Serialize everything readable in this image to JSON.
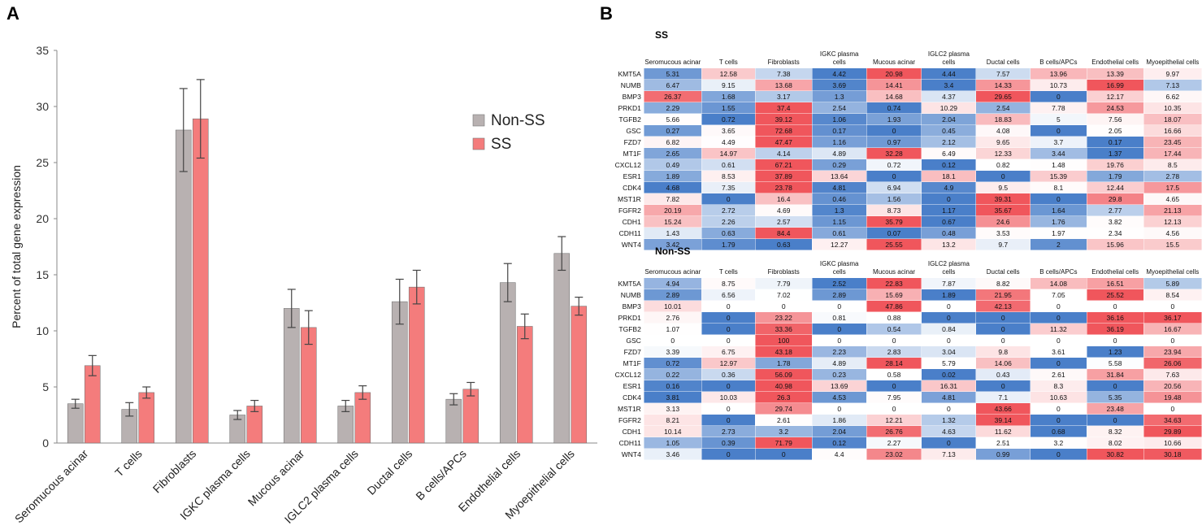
{
  "panel_labels": {
    "a": "A",
    "b": "B"
  },
  "colors": {
    "non_ss": "#b8b1b1",
    "ss": "#f47c7c",
    "axis": "#888888",
    "low": "#4a7fc9",
    "mid": "#ffffff",
    "high": "#f0565c"
  },
  "chart_data": [
    {
      "type": "bar",
      "ylabel": "Percent of total gene  expression",
      "ylim": [
        0,
        35
      ],
      "yticks": [
        0,
        5,
        10,
        15,
        20,
        25,
        30,
        35
      ],
      "categories": [
        "Seromucous acinar",
        "T cells",
        "Fibroblasts",
        "IGKC plasma cells",
        "Mucous acinar",
        "IGLC2 plasma cells",
        "Ductal cells",
        "B cells/APCs",
        "Endothelial cells",
        "Myoepithelial cells"
      ],
      "legend": {
        "position": "top-right",
        "entries": [
          "Non-SS",
          "SS"
        ]
      },
      "series": [
        {
          "name": "Non-SS",
          "values": [
            3.5,
            3.0,
            27.9,
            2.5,
            12.0,
            3.3,
            12.6,
            3.9,
            14.3,
            16.9
          ],
          "errors": [
            0.4,
            0.6,
            3.7,
            0.4,
            1.7,
            0.5,
            2.0,
            0.5,
            1.7,
            1.5
          ]
        },
        {
          "name": "SS",
          "values": [
            6.9,
            4.5,
            28.9,
            3.3,
            10.3,
            4.5,
            13.9,
            4.8,
            10.4,
            12.2
          ],
          "errors": [
            0.9,
            0.5,
            3.5,
            0.5,
            1.5,
            0.6,
            1.5,
            0.6,
            1.1,
            0.8
          ]
        }
      ]
    },
    {
      "type": "heatmap",
      "title": "SS",
      "columns": [
        "Seromucous acinar",
        "T cells",
        "Fibroblasts",
        "IGKC plasma cells",
        "Mucous acinar",
        "IGLC2 plasma cells",
        "Ductal cells",
        "B cells/APCs",
        "Endothelial cells",
        "Myoepithelial cells"
      ],
      "rows": [
        {
          "gene": "KMT5A",
          "values": [
            "5.31",
            "12.58",
            "7.38",
            "4.42",
            "20.98",
            "4.44",
            "7.57",
            "13.96",
            "13.39",
            "9.97"
          ]
        },
        {
          "gene": "NUMB",
          "values": [
            "6.47",
            "9.15",
            "13.68",
            "3.69",
            "14.41",
            "3.4",
            "14.33",
            "10.73",
            "16.99",
            "7.13"
          ]
        },
        {
          "gene": "BMP3",
          "values": [
            "26.37",
            "1.68",
            "3.17",
            "1.3",
            "14.68",
            "4.37",
            "29.65",
            "0",
            "12.17",
            "6.62"
          ]
        },
        {
          "gene": "PRKD1",
          "values": [
            "2.29",
            "1.55",
            "37.4",
            "2.54",
            "0.74",
            "10.29",
            "2.54",
            "7.78",
            "24.53",
            "10.35"
          ]
        },
        {
          "gene": "TGFB2",
          "values": [
            "5.66",
            "0.72",
            "39.12",
            "1.06",
            "1.93",
            "2.04",
            "18.83",
            "5",
            "7.56",
            "18.07"
          ]
        },
        {
          "gene": "GSC",
          "values": [
            "0.27",
            "3.65",
            "72.68",
            "0.17",
            "0",
            "0.45",
            "4.08",
            "0",
            "2.05",
            "16.66"
          ]
        },
        {
          "gene": "FZD7",
          "values": [
            "6.82",
            "4.49",
            "47.47",
            "1.16",
            "0.97",
            "2.12",
            "9.65",
            "3.7",
            "0.17",
            "23.45"
          ]
        },
        {
          "gene": "MT1F",
          "values": [
            "2.65",
            "14.97",
            "4.14",
            "4.89",
            "32.28",
            "6.49",
            "12.33",
            "3.44",
            "1.37",
            "17.44"
          ]
        },
        {
          "gene": "CXCL12",
          "values": [
            "0.49",
            "0.61",
            "67.21",
            "0.29",
            "0.72",
            "0.12",
            "0.82",
            "1.48",
            "19.76",
            "8.5"
          ]
        },
        {
          "gene": "ESR1",
          "values": [
            "1.89",
            "8.53",
            "37.89",
            "13.64",
            "0",
            "18.1",
            "0",
            "15.39",
            "1.79",
            "2.78"
          ]
        },
        {
          "gene": "CDK4",
          "values": [
            "4.68",
            "7.35",
            "23.78",
            "4.81",
            "6.94",
            "4.9",
            "9.5",
            "8.1",
            "12.44",
            "17.5"
          ]
        },
        {
          "gene": "MST1R",
          "values": [
            "7.82",
            "0",
            "16.4",
            "0.46",
            "1.56",
            "0",
            "39.31",
            "0",
            "29.8",
            "4.65"
          ]
        },
        {
          "gene": "FGFR2",
          "values": [
            "20.19",
            "2.72",
            "4.69",
            "1.3",
            "8.73",
            "1.17",
            "35.67",
            "1.64",
            "2.77",
            "21.13"
          ]
        },
        {
          "gene": "CDH1",
          "values": [
            "15.24",
            "2.26",
            "2.57",
            "1.15",
            "35.79",
            "0.67",
            "24.6",
            "1.76",
            "3.82",
            "12.13"
          ]
        },
        {
          "gene": "CDH11",
          "values": [
            "1.43",
            "0.63",
            "84.4",
            "0.61",
            "0.07",
            "0.48",
            "3.53",
            "1.97",
            "2.34",
            "4.56"
          ]
        },
        {
          "gene": "WNT4",
          "values": [
            "3.42",
            "1.79",
            "0.63",
            "12.27",
            "25.55",
            "13.2",
            "9.7",
            "2",
            "15.96",
            "15.5"
          ]
        }
      ]
    },
    {
      "type": "heatmap",
      "title": "Non-SS",
      "columns": [
        "Seromucous acinar",
        "T cells",
        "Fibroblasts",
        "IGKC plasma cells",
        "Mucous acinar",
        "IGLC2 plasma cells",
        "Ductal cells",
        "B cells/APCs",
        "Endothelial cells",
        "Myoepithelial cells"
      ],
      "rows": [
        {
          "gene": "KMT5A",
          "values": [
            "4.94",
            "8.75",
            "7.79",
            "2.52",
            "22.83",
            "7.87",
            "8.82",
            "14.08",
            "16.51",
            "5.89"
          ]
        },
        {
          "gene": "NUMB",
          "values": [
            "2.89",
            "6.56",
            "7.02",
            "2.89",
            "15.69",
            "1.89",
            "21.95",
            "7.05",
            "25.52",
            "8.54"
          ]
        },
        {
          "gene": "BMP3",
          "values": [
            "10.01",
            "0",
            "0",
            "0",
            "47.86",
            "0",
            "42.13",
            "0",
            "0",
            "0"
          ]
        },
        {
          "gene": "PRKD1",
          "values": [
            "2.76",
            "0",
            "23.22",
            "0.81",
            "0.88",
            "0",
            "0",
            "0",
            "36.16",
            "36.17"
          ]
        },
        {
          "gene": "TGFB2",
          "values": [
            "1.07",
            "0",
            "33.36",
            "0",
            "0.54",
            "0.84",
            "0",
            "11.32",
            "36.19",
            "16.67"
          ]
        },
        {
          "gene": "GSC",
          "values": [
            "0",
            "0",
            "100",
            "0",
            "0",
            "0",
            "0",
            "0",
            "0",
            "0"
          ]
        },
        {
          "gene": "FZD7",
          "values": [
            "3.39",
            "6.75",
            "43.18",
            "2.23",
            "2.83",
            "3.04",
            "9.8",
            "3.61",
            "1.23",
            "23.94"
          ]
        },
        {
          "gene": "MT1F",
          "values": [
            "0.72",
            "12.97",
            "1.78",
            "4.89",
            "28.14",
            "5.79",
            "14.06",
            "0",
            "5.58",
            "26.06"
          ]
        },
        {
          "gene": "CXCL12",
          "values": [
            "0.22",
            "0.36",
            "56.09",
            "0.23",
            "0.58",
            "0.02",
            "0.43",
            "2.61",
            "31.84",
            "7.63"
          ]
        },
        {
          "gene": "ESR1",
          "values": [
            "0.16",
            "0",
            "40.98",
            "13.69",
            "0",
            "16.31",
            "0",
            "8.3",
            "0",
            "20.56"
          ]
        },
        {
          "gene": "CDK4",
          "values": [
            "3.81",
            "10.03",
            "26.3",
            "4.53",
            "7.95",
            "4.81",
            "7.1",
            "10.63",
            "5.35",
            "19.48"
          ]
        },
        {
          "gene": "MST1R",
          "values": [
            "3.13",
            "0",
            "29.74",
            "0",
            "0",
            "0",
            "43.66",
            "0",
            "23.48",
            "0"
          ]
        },
        {
          "gene": "FGFR2",
          "values": [
            "8.21",
            "0",
            "2.61",
            "1.86",
            "12.21",
            "1.32",
            "39.14",
            "0",
            "0",
            "34.63"
          ]
        },
        {
          "gene": "CDH1",
          "values": [
            "10.14",
            "2.73",
            "3.2",
            "2.04",
            "26.76",
            "4.63",
            "11.62",
            "0.68",
            "8.32",
            "29.89"
          ]
        },
        {
          "gene": "CDH11",
          "values": [
            "1.05",
            "0.39",
            "71.79",
            "0.12",
            "2.27",
            "0",
            "2.51",
            "3.2",
            "8.02",
            "10.66"
          ]
        },
        {
          "gene": "WNT4",
          "values": [
            "3.46",
            "0",
            "0",
            "4.4",
            "23.02",
            "7.13",
            "0.99",
            "0",
            "30.82",
            "30.18"
          ]
        }
      ]
    }
  ]
}
